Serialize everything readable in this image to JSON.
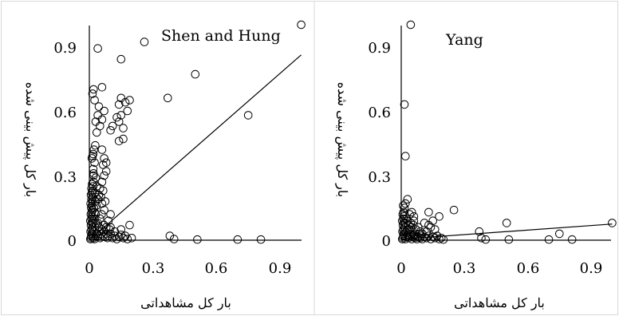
{
  "chart_data": [
    {
      "type": "scatter",
      "title": "Shen and Hung",
      "xlabel": "بار کل مشاهداتی",
      "ylabel": "بار کل پیش بینی شده",
      "xlim": [
        0,
        1.0
      ],
      "ylim": [
        0,
        1.0
      ],
      "x_ticks": [
        "0",
        "0.3",
        "0.6",
        "0.9"
      ],
      "y_ticks": [
        "0",
        "0.3",
        "0.6",
        "0.9"
      ],
      "grid": false,
      "trendline": {
        "x": [
          0.0,
          1.0
        ],
        "y": [
          0.0,
          0.86
        ]
      },
      "points": [
        [
          0.005,
          0.005
        ],
        [
          0.008,
          0.01
        ],
        [
          0.01,
          0.02
        ],
        [
          0.012,
          0.03
        ],
        [
          0.006,
          0.04
        ],
        [
          0.01,
          0.05
        ],
        [
          0.015,
          0.06
        ],
        [
          0.008,
          0.07
        ],
        [
          0.012,
          0.08
        ],
        [
          0.005,
          0.09
        ],
        [
          0.01,
          0.1
        ],
        [
          0.013,
          0.11
        ],
        [
          0.007,
          0.12
        ],
        [
          0.011,
          0.13
        ],
        [
          0.015,
          0.14
        ],
        [
          0.009,
          0.15
        ],
        [
          0.012,
          0.16
        ],
        [
          0.006,
          0.17
        ],
        [
          0.014,
          0.18
        ],
        [
          0.01,
          0.19
        ],
        [
          0.016,
          0.2
        ],
        [
          0.008,
          0.21
        ],
        [
          0.012,
          0.22
        ],
        [
          0.015,
          0.23
        ],
        [
          0.01,
          0.24
        ],
        [
          0.018,
          0.25
        ],
        [
          0.013,
          0.26
        ],
        [
          0.02,
          0.27
        ],
        [
          0.009,
          0.02
        ],
        [
          0.02,
          0.01
        ],
        [
          0.025,
          0.005
        ],
        [
          0.03,
          0.02
        ],
        [
          0.022,
          0.04
        ],
        [
          0.028,
          0.06
        ],
        [
          0.035,
          0.03
        ],
        [
          0.018,
          0.08
        ],
        [
          0.024,
          0.1
        ],
        [
          0.03,
          0.12
        ],
        [
          0.022,
          0.15
        ],
        [
          0.028,
          0.18
        ],
        [
          0.032,
          0.2
        ],
        [
          0.026,
          0.22
        ],
        [
          0.02,
          0.3
        ],
        [
          0.018,
          0.33
        ],
        [
          0.025,
          0.36
        ],
        [
          0.012,
          0.38
        ],
        [
          0.018,
          0.4
        ],
        [
          0.022,
          0.42
        ],
        [
          0.028,
          0.44
        ],
        [
          0.015,
          0.39
        ],
        [
          0.03,
          0.29
        ],
        [
          0.02,
          0.31
        ],
        [
          0.035,
          0.25
        ],
        [
          0.04,
          0.02
        ],
        [
          0.045,
          0.04
        ],
        [
          0.05,
          0.01
        ],
        [
          0.055,
          0.03
        ],
        [
          0.06,
          0.05
        ],
        [
          0.04,
          0.08
        ],
        [
          0.05,
          0.1
        ],
        [
          0.058,
          0.12
        ],
        [
          0.045,
          0.06
        ],
        [
          0.065,
          0.02
        ],
        [
          0.07,
          0.04
        ],
        [
          0.075,
          0.015
        ],
        [
          0.08,
          0.03
        ],
        [
          0.085,
          0.01
        ],
        [
          0.09,
          0.02
        ],
        [
          0.07,
          0.07
        ],
        [
          0.08,
          0.06
        ],
        [
          0.095,
          0.05
        ],
        [
          0.1,
          0.03
        ],
        [
          0.11,
          0.01
        ],
        [
          0.12,
          0.02
        ],
        [
          0.13,
          0.005
        ],
        [
          0.14,
          0.015
        ],
        [
          0.15,
          0.025
        ],
        [
          0.16,
          0.01
        ],
        [
          0.17,
          0.02
        ],
        [
          0.18,
          0.005
        ],
        [
          0.12,
          0.04
        ],
        [
          0.15,
          0.05
        ],
        [
          0.1,
          0.06
        ],
        [
          0.06,
          0.17
        ],
        [
          0.07,
          0.14
        ],
        [
          0.055,
          0.2
        ],
        [
          0.065,
          0.23
        ],
        [
          0.075,
          0.18
        ],
        [
          0.05,
          0.24
        ],
        [
          0.06,
          0.27
        ],
        [
          0.07,
          0.3
        ],
        [
          0.08,
          0.32
        ],
        [
          0.065,
          0.35
        ],
        [
          0.07,
          0.38
        ],
        [
          0.08,
          0.36
        ],
        [
          0.06,
          0.42
        ],
        [
          0.035,
          0.5
        ],
        [
          0.03,
          0.55
        ],
        [
          0.04,
          0.58
        ],
        [
          0.05,
          0.53
        ],
        [
          0.06,
          0.56
        ],
        [
          0.07,
          0.6
        ],
        [
          0.045,
          0.62
        ],
        [
          0.025,
          0.65
        ],
        [
          0.015,
          0.68
        ],
        [
          0.02,
          0.7
        ],
        [
          0.06,
          0.71
        ],
        [
          0.1,
          0.51
        ],
        [
          0.11,
          0.53
        ],
        [
          0.14,
          0.55
        ],
        [
          0.15,
          0.58
        ],
        [
          0.16,
          0.52
        ],
        [
          0.13,
          0.57
        ],
        [
          0.14,
          0.63
        ],
        [
          0.15,
          0.66
        ],
        [
          0.17,
          0.64
        ],
        [
          0.19,
          0.65
        ],
        [
          0.18,
          0.6
        ],
        [
          0.16,
          0.47
        ],
        [
          0.14,
          0.46
        ],
        [
          0.15,
          0.84
        ],
        [
          0.04,
          0.89
        ],
        [
          0.26,
          0.92
        ],
        [
          0.5,
          0.77
        ],
        [
          0.37,
          0.66
        ],
        [
          0.75,
          0.58
        ],
        [
          0.19,
          0.07
        ],
        [
          0.2,
          0.01
        ],
        [
          0.38,
          0.02
        ],
        [
          0.4,
          0.005
        ],
        [
          0.51,
          0.003
        ],
        [
          0.7,
          0.003
        ],
        [
          0.81,
          0.003
        ],
        [
          1.0,
          1.0
        ],
        [
          0.09,
          0.09
        ],
        [
          0.1,
          0.12
        ],
        [
          0.03,
          0.08
        ],
        [
          0.025,
          0.13
        ],
        [
          0.033,
          0.16
        ],
        [
          0.04,
          0.19
        ],
        [
          0.045,
          0.21
        ]
      ]
    },
    {
      "type": "scatter",
      "title": "Yang",
      "xlabel": "بار کل مشاهداتی",
      "ylabel": "بار کل پیش بینی شده",
      "xlim": [
        0,
        1.0
      ],
      "ylim": [
        0,
        1.0
      ],
      "x_ticks": [
        "0",
        "0.3",
        "0.6",
        "0.9"
      ],
      "y_ticks": [
        "0",
        "0.3",
        "0.6",
        "0.9"
      ],
      "grid": false,
      "trendline": {
        "x": [
          0.0,
          1.0
        ],
        "y": [
          0.005,
          0.075
        ]
      },
      "points": [
        [
          0.005,
          0.005
        ],
        [
          0.008,
          0.01
        ],
        [
          0.01,
          0.02
        ],
        [
          0.012,
          0.03
        ],
        [
          0.006,
          0.04
        ],
        [
          0.01,
          0.05
        ],
        [
          0.015,
          0.06
        ],
        [
          0.008,
          0.07
        ],
        [
          0.012,
          0.08
        ],
        [
          0.005,
          0.09
        ],
        [
          0.01,
          0.1
        ],
        [
          0.013,
          0.11
        ],
        [
          0.007,
          0.12
        ],
        [
          0.011,
          0.13
        ],
        [
          0.015,
          0.15
        ],
        [
          0.009,
          0.16
        ],
        [
          0.02,
          0.005
        ],
        [
          0.025,
          0.015
        ],
        [
          0.03,
          0.025
        ],
        [
          0.022,
          0.035
        ],
        [
          0.028,
          0.045
        ],
        [
          0.035,
          0.01
        ],
        [
          0.04,
          0.02
        ],
        [
          0.045,
          0.03
        ],
        [
          0.05,
          0.005
        ],
        [
          0.055,
          0.015
        ],
        [
          0.06,
          0.025
        ],
        [
          0.04,
          0.05
        ],
        [
          0.05,
          0.06
        ],
        [
          0.058,
          0.07
        ],
        [
          0.045,
          0.08
        ],
        [
          0.065,
          0.01
        ],
        [
          0.07,
          0.02
        ],
        [
          0.075,
          0.005
        ],
        [
          0.08,
          0.015
        ],
        [
          0.085,
          0.03
        ],
        [
          0.09,
          0.01
        ],
        [
          0.095,
          0.02
        ],
        [
          0.1,
          0.005
        ],
        [
          0.11,
          0.015
        ],
        [
          0.12,
          0.01
        ],
        [
          0.13,
          0.02
        ],
        [
          0.14,
          0.005
        ],
        [
          0.15,
          0.015
        ],
        [
          0.16,
          0.01
        ],
        [
          0.17,
          0.02
        ],
        [
          0.18,
          0.005
        ],
        [
          0.19,
          0.01
        ],
        [
          0.2,
          0.003
        ],
        [
          0.02,
          0.08
        ],
        [
          0.03,
          0.09
        ],
        [
          0.025,
          0.1
        ],
        [
          0.035,
          0.07
        ],
        [
          0.06,
          0.09
        ],
        [
          0.07,
          0.05
        ],
        [
          0.08,
          0.06
        ],
        [
          0.09,
          0.04
        ],
        [
          0.1,
          0.03
        ],
        [
          0.12,
          0.04
        ],
        [
          0.13,
          0.07
        ],
        [
          0.14,
          0.06
        ],
        [
          0.15,
          0.09
        ],
        [
          0.16,
          0.05
        ],
        [
          0.18,
          0.11
        ],
        [
          0.13,
          0.13
        ],
        [
          0.25,
          0.14
        ],
        [
          0.05,
          0.13
        ],
        [
          0.02,
          0.17
        ],
        [
          0.03,
          0.19
        ],
        [
          0.02,
          0.39
        ],
        [
          0.015,
          0.63
        ],
        [
          0.045,
          1.0
        ],
        [
          0.37,
          0.04
        ],
        [
          0.38,
          0.01
        ],
        [
          0.4,
          0.003
        ],
        [
          0.5,
          0.08
        ],
        [
          0.51,
          0.003
        ],
        [
          0.7,
          0.003
        ],
        [
          0.75,
          0.03
        ],
        [
          0.81,
          0.003
        ],
        [
          1.0,
          0.08
        ],
        [
          0.04,
          0.12
        ],
        [
          0.06,
          0.11
        ],
        [
          0.11,
          0.08
        ]
      ]
    }
  ]
}
